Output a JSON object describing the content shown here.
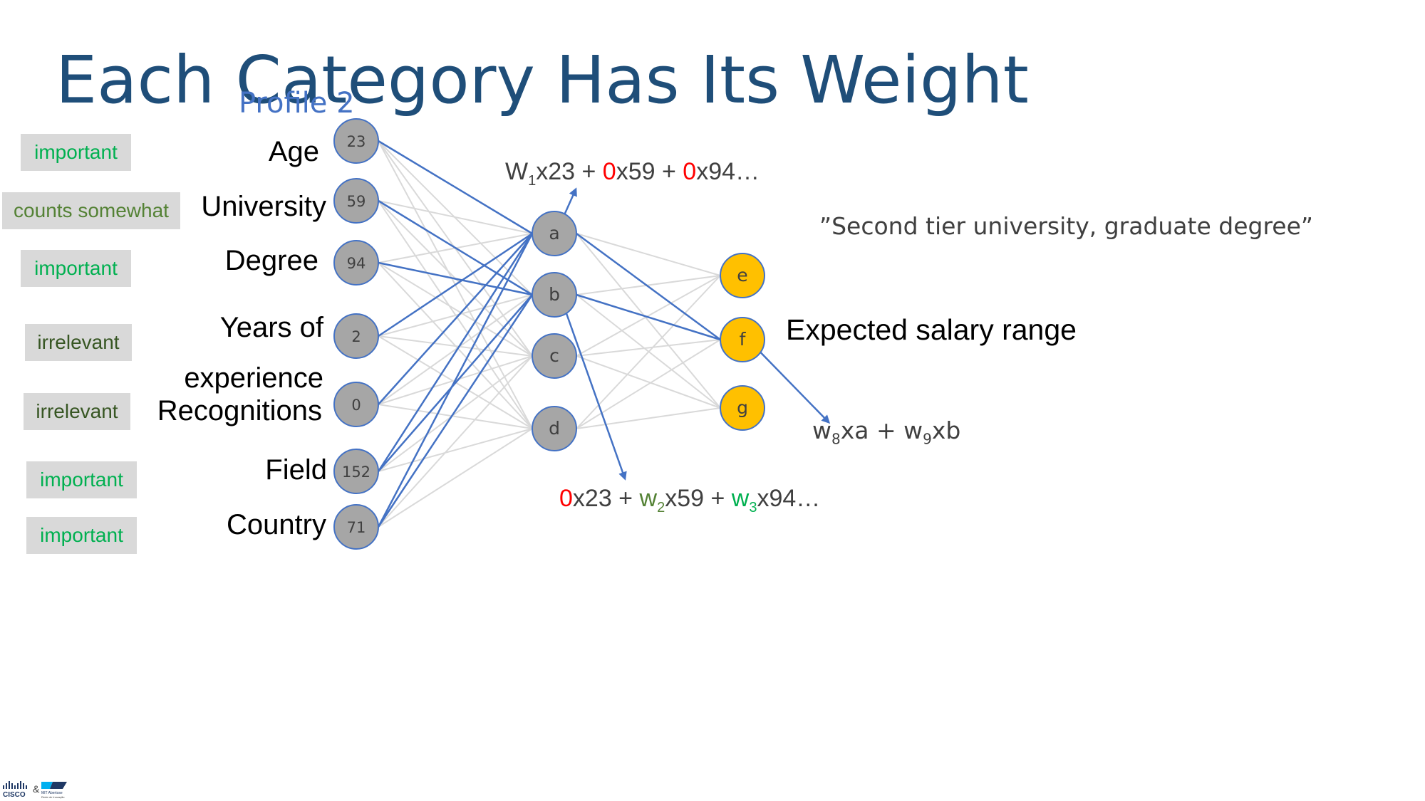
{
  "title": "Each Category Has Its Weight",
  "profile": "Profile 2",
  "categories": [
    {
      "label_line1": "Age",
      "label_line2": "",
      "value": "23",
      "tag": "important"
    },
    {
      "label_line1": "University",
      "label_line2": "",
      "value": "59",
      "tag": "counts somewhat"
    },
    {
      "label_line1": "Degree",
      "label_line2": "",
      "value": "94",
      "tag": "important"
    },
    {
      "label_line1": "Years of",
      "label_line2": "experience",
      "value": "2",
      "tag": "irrelevant"
    },
    {
      "label_line1": "Recognitions",
      "label_line2": "",
      "value": "0",
      "tag": "irrelevant"
    },
    {
      "label_line1": "Field",
      "label_line2": "",
      "value": "152",
      "tag": "important"
    },
    {
      "label_line1": "Country",
      "label_line2": "",
      "value": "71",
      "tag": "important"
    }
  ],
  "hidden_nodes": [
    "a",
    "b",
    "c",
    "d"
  ],
  "output_nodes": [
    "e",
    "f",
    "g"
  ],
  "quote": "”Second tier university, graduate degree”",
  "output_label": "Expected salary range",
  "formula_a": {
    "w": "W",
    "w_sub": "1",
    "t1": "x23 + ",
    "z1": "0",
    "t2": "x59 + ",
    "z2": "0",
    "t3": "x94…"
  },
  "formula_b": {
    "z": "0",
    "t1": "x23 + ",
    "w2": "w",
    "w2_sub": "2",
    "t2": "x59 + ",
    "w3": "w",
    "w3_sub": "3",
    "t3": "x94…"
  },
  "formula_f": {
    "w8": "w",
    "w8_sub": "8",
    "t1": "xa + ",
    "w9": "w",
    "w9_sub": "9",
    "t2": "xb"
  },
  "logo": {
    "left": "CISCO",
    "amp": "&",
    "right_title": "MIT Abertose",
    "right_sub": "Rede de Inovação"
  },
  "colors": {
    "title": "#1f4e79",
    "edge_highlight": "#4472c4",
    "edge_default": "#d9d9d9",
    "input_node": "#a6a6a6",
    "output_node": "#ffc000",
    "important": "#00b050",
    "somewhat": "#548235",
    "irrelevant": "#375623"
  }
}
